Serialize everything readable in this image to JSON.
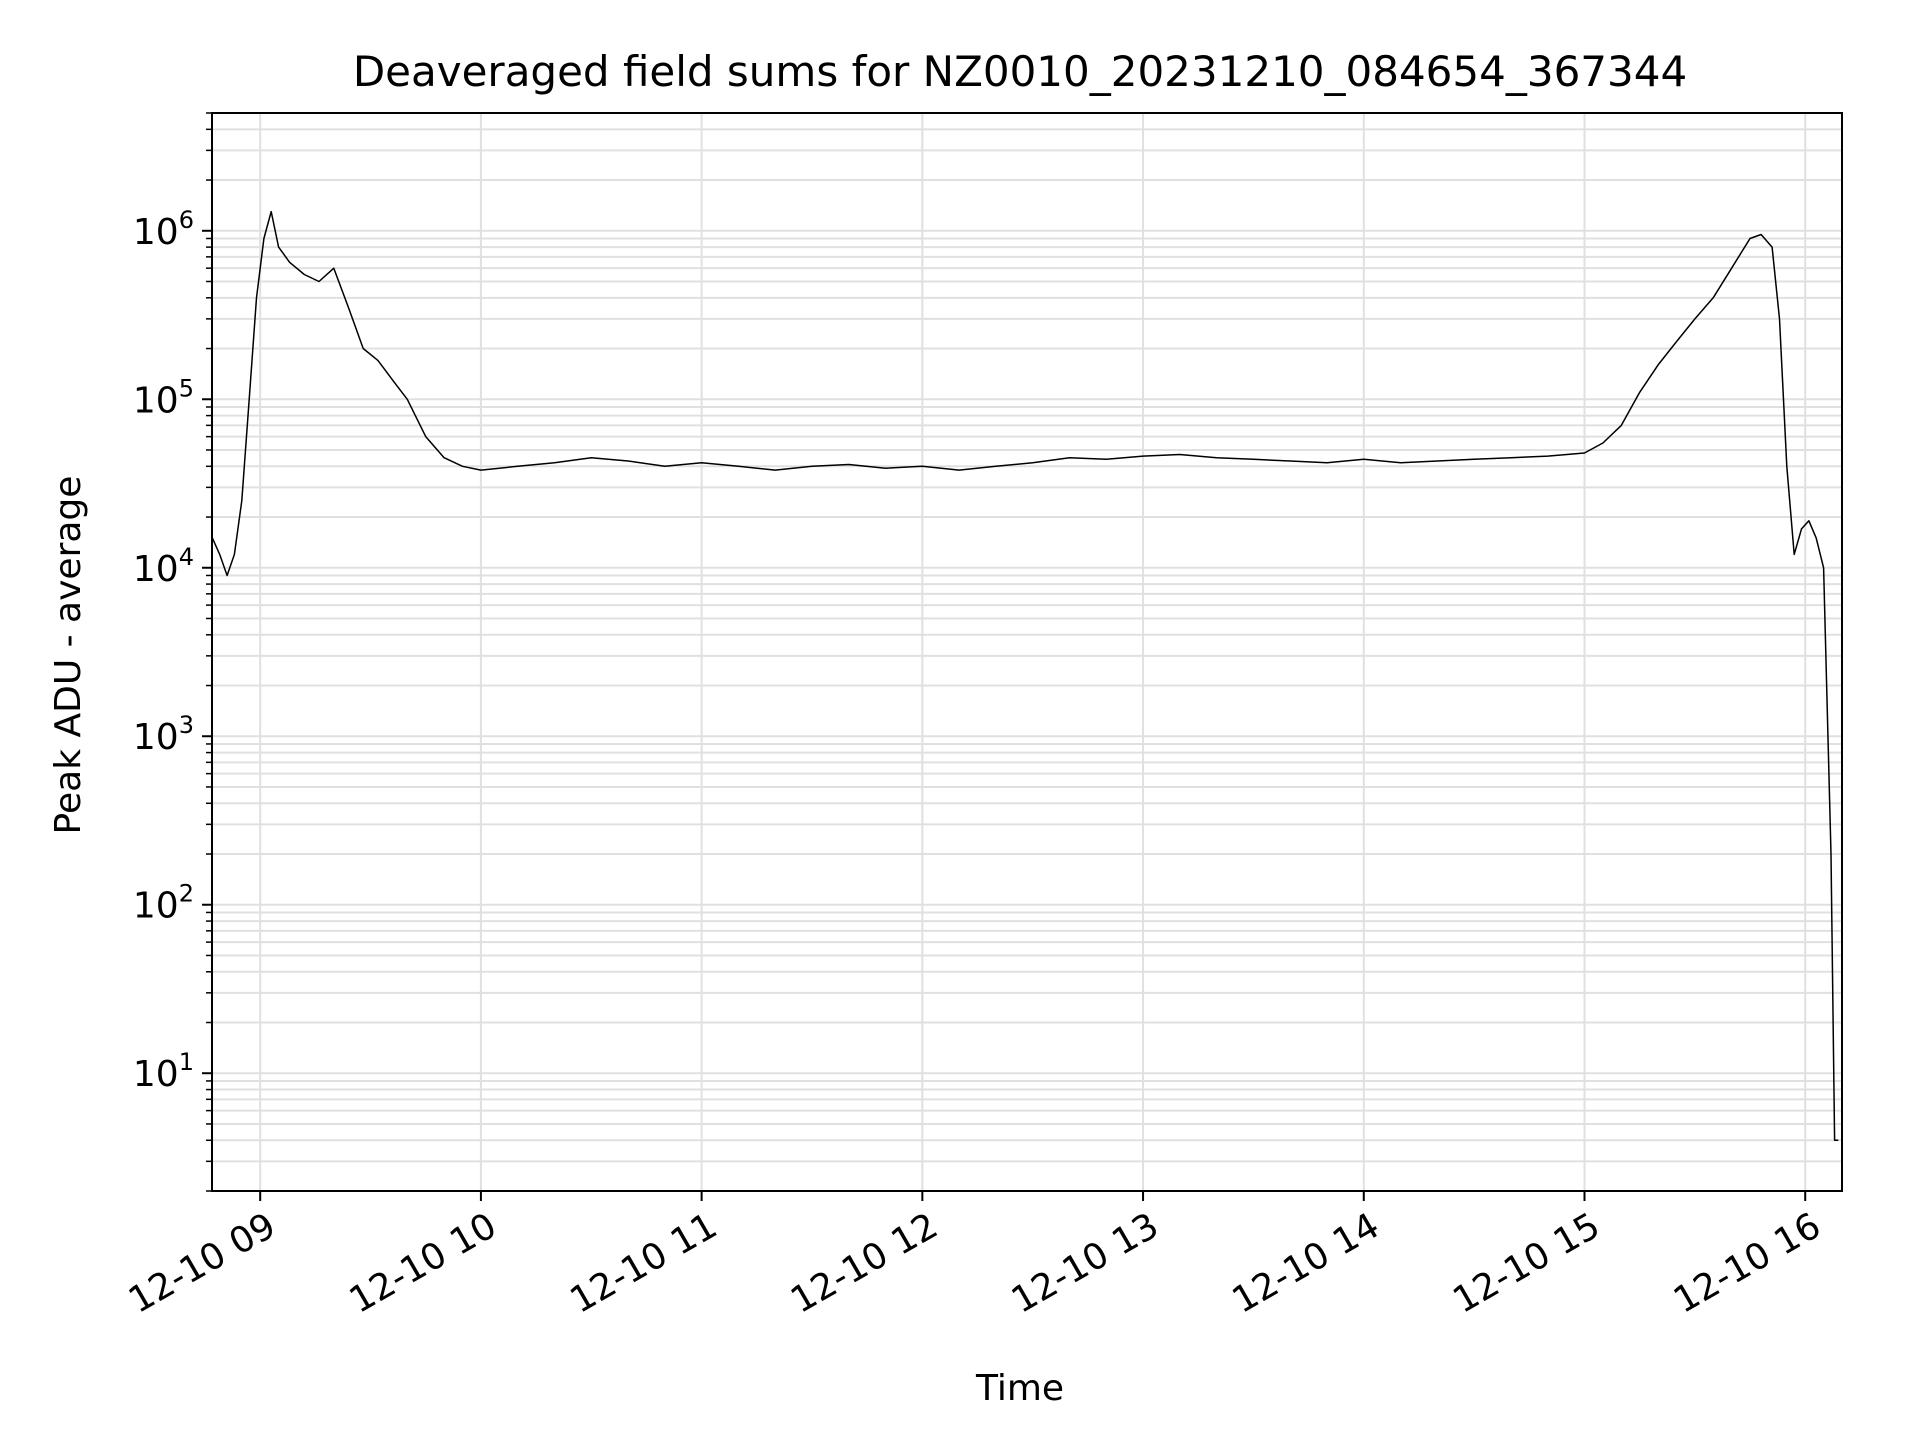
{
  "chart_data": {
    "type": "line",
    "title": "Deaveraged field sums for NZ0010_20231210_084654_367344",
    "xlabel": "Time",
    "ylabel": "Peak ADU - average",
    "yscale": "log",
    "ylim": [
      2,
      5000000
    ],
    "xlim": [
      "2023-12-10 08:46:54",
      "2023-12-10 16:10:00"
    ],
    "grid": true,
    "x_ticks": [
      {
        "value": "2023-12-10 09:00",
        "label": "12-10 09"
      },
      {
        "value": "2023-12-10 10:00",
        "label": "12-10 10"
      },
      {
        "value": "2023-12-10 11:00",
        "label": "12-10 11"
      },
      {
        "value": "2023-12-10 12:00",
        "label": "12-10 12"
      },
      {
        "value": "2023-12-10 13:00",
        "label": "12-10 13"
      },
      {
        "value": "2023-12-10 14:00",
        "label": "12-10 14"
      },
      {
        "value": "2023-12-10 15:00",
        "label": "12-10 15"
      },
      {
        "value": "2023-12-10 16:00",
        "label": "12-10 16"
      }
    ],
    "y_ticks": [
      {
        "value": 10,
        "base": "10",
        "exp": "1"
      },
      {
        "value": 100,
        "base": "10",
        "exp": "2"
      },
      {
        "value": 1000,
        "base": "10",
        "exp": "3"
      },
      {
        "value": 10000,
        "base": "10",
        "exp": "4"
      },
      {
        "value": 100000,
        "base": "10",
        "exp": "5"
      },
      {
        "value": 1000000,
        "base": "10",
        "exp": "6"
      }
    ],
    "series": [
      {
        "color": "#000000",
        "x": [
          "2023-12-10 08:47",
          "2023-12-10 08:49",
          "2023-12-10 08:51",
          "2023-12-10 08:53",
          "2023-12-10 08:55",
          "2023-12-10 08:57",
          "2023-12-10 08:59",
          "2023-12-10 09:01",
          "2023-12-10 09:03",
          "2023-12-10 09:05",
          "2023-12-10 09:08",
          "2023-12-10 09:12",
          "2023-12-10 09:16",
          "2023-12-10 09:20",
          "2023-12-10 09:24",
          "2023-12-10 09:28",
          "2023-12-10 09:32",
          "2023-12-10 09:36",
          "2023-12-10 09:40",
          "2023-12-10 09:45",
          "2023-12-10 09:50",
          "2023-12-10 09:55",
          "2023-12-10 10:00",
          "2023-12-10 10:10",
          "2023-12-10 10:20",
          "2023-12-10 10:30",
          "2023-12-10 10:40",
          "2023-12-10 10:50",
          "2023-12-10 11:00",
          "2023-12-10 11:10",
          "2023-12-10 11:20",
          "2023-12-10 11:30",
          "2023-12-10 11:40",
          "2023-12-10 11:50",
          "2023-12-10 12:00",
          "2023-12-10 12:10",
          "2023-12-10 12:20",
          "2023-12-10 12:30",
          "2023-12-10 12:40",
          "2023-12-10 12:50",
          "2023-12-10 13:00",
          "2023-12-10 13:10",
          "2023-12-10 13:20",
          "2023-12-10 13:30",
          "2023-12-10 13:40",
          "2023-12-10 13:50",
          "2023-12-10 14:00",
          "2023-12-10 14:10",
          "2023-12-10 14:20",
          "2023-12-10 14:30",
          "2023-12-10 14:40",
          "2023-12-10 14:50",
          "2023-12-10 15:00",
          "2023-12-10 15:05",
          "2023-12-10 15:10",
          "2023-12-10 15:15",
          "2023-12-10 15:20",
          "2023-12-10 15:25",
          "2023-12-10 15:30",
          "2023-12-10 15:35",
          "2023-12-10 15:40",
          "2023-12-10 15:45",
          "2023-12-10 15:48",
          "2023-12-10 15:51",
          "2023-12-10 15:53",
          "2023-12-10 15:55",
          "2023-12-10 15:57",
          "2023-12-10 15:59",
          "2023-12-10 16:01",
          "2023-12-10 16:03",
          "2023-12-10 16:05",
          "2023-12-10 16:07",
          "2023-12-10 16:08",
          "2023-12-10 16:09"
        ],
        "y": [
          15000,
          12000,
          9000,
          12000,
          25000,
          100000,
          400000,
          900000,
          1300000,
          800000,
          650000,
          550000,
          500000,
          600000,
          350000,
          200000,
          170000,
          130000,
          100000,
          60000,
          45000,
          40000,
          38000,
          40000,
          42000,
          45000,
          43000,
          40000,
          42000,
          40000,
          38000,
          40000,
          41000,
          39000,
          40000,
          38000,
          40000,
          42000,
          45000,
          44000,
          46000,
          47000,
          45000,
          44000,
          43000,
          42000,
          44000,
          42000,
          43000,
          44000,
          45000,
          46000,
          48000,
          55000,
          70000,
          110000,
          160000,
          220000,
          300000,
          400000,
          600000,
          900000,
          950000,
          800000,
          300000,
          40000,
          12000,
          17000,
          19000,
          15000,
          10000,
          200,
          4,
          4
        ]
      }
    ]
  }
}
